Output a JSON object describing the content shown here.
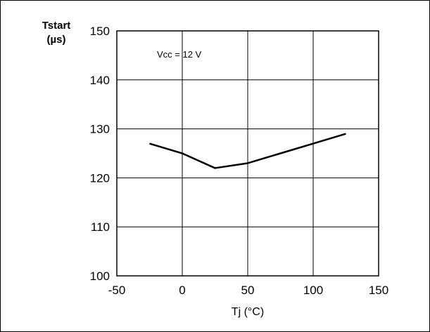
{
  "chart_data": {
    "type": "line",
    "title": "",
    "xlabel": "Tj  (°C)",
    "ylabel_line1": "Tstart",
    "ylabel_line2": "(µs)",
    "annotation": "Vcc = 12 V",
    "xlim": [
      -50,
      150
    ],
    "ylim": [
      100,
      150
    ],
    "xticks": [
      -50,
      0,
      50,
      100,
      150
    ],
    "yticks": [
      100,
      110,
      120,
      130,
      140,
      150
    ],
    "grid": true,
    "series": [
      {
        "x": [
          -25,
          0,
          25,
          50,
          75,
          100,
          125
        ],
        "y": [
          127,
          125,
          122,
          123,
          125,
          127,
          129
        ]
      }
    ],
    "colors": {
      "line": "#000000",
      "grid": "#000000",
      "background": "#ffffff"
    }
  }
}
